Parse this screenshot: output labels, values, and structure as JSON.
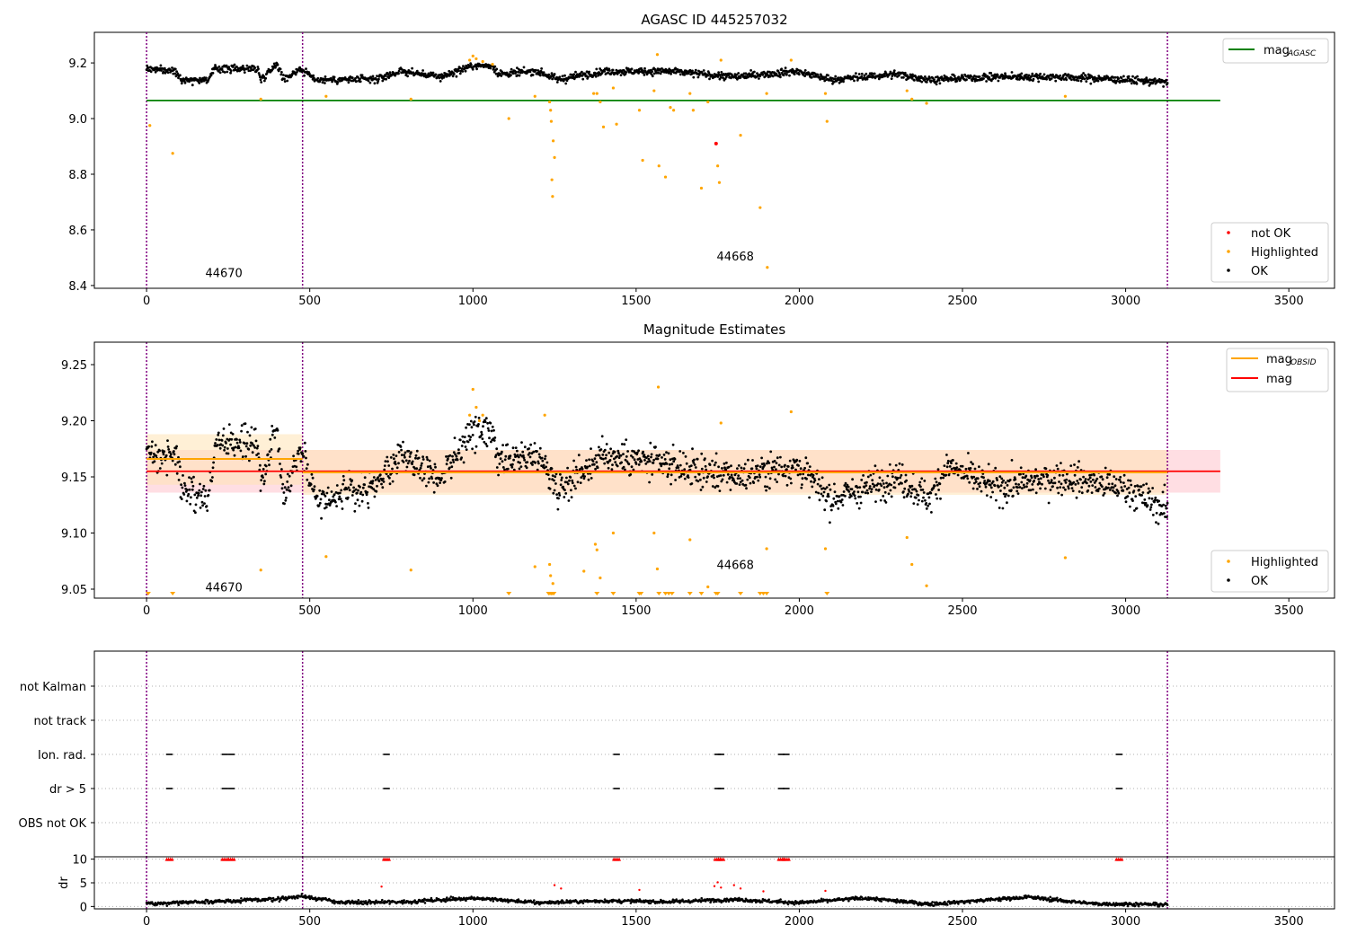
{
  "colors": {
    "ok": "#000000",
    "not_ok": "#ff0000",
    "highlighted": "#ffa500",
    "agasc_line": "#008000",
    "obsid_line": "#ffa500",
    "mag_line": "#ff0000",
    "obs_boundary": "#800080",
    "mag_band": "#ffb6c1",
    "obsid_band": "#ffe4b5"
  },
  "chart_data": [
    {
      "type": "scatter",
      "title": "AGASC ID 445257032",
      "xlim": [
        -160,
        3640
      ],
      "ylim": [
        8.39,
        9.31
      ],
      "xticks": [
        "0",
        "500",
        "1000",
        "1500",
        "2000",
        "2500",
        "3000",
        "3500"
      ],
      "xtick_values": [
        0,
        500,
        1000,
        1500,
        2000,
        2500,
        3000,
        3500
      ],
      "yticks": [
        "8.4",
        "8.6",
        "8.8",
        "9.0",
        "9.2"
      ],
      "ytick_values": [
        8.4,
        8.6,
        8.8,
        9.0,
        9.2
      ],
      "obs_boundaries": [
        0,
        478,
        3128
      ],
      "obsid_labels": [
        {
          "text": "44670",
          "x": 180,
          "y": 8.43
        },
        {
          "text": "44668",
          "x": 1747,
          "y": 8.49
        }
      ],
      "mag_agasc": 9.065,
      "mag_agasc_xrange": [
        0,
        3290
      ],
      "ok_trend": [
        {
          "x": 0,
          "y": 9.18
        },
        {
          "x": 90,
          "y": 9.17
        },
        {
          "x": 110,
          "y": 9.14
        },
        {
          "x": 190,
          "y": 9.14
        },
        {
          "x": 210,
          "y": 9.18
        },
        {
          "x": 340,
          "y": 9.18
        },
        {
          "x": 350,
          "y": 9.14
        },
        {
          "x": 400,
          "y": 9.2
        },
        {
          "x": 420,
          "y": 9.14
        },
        {
          "x": 470,
          "y": 9.18
        },
        {
          "x": 520,
          "y": 9.14
        },
        {
          "x": 700,
          "y": 9.14
        },
        {
          "x": 780,
          "y": 9.17
        },
        {
          "x": 900,
          "y": 9.15
        },
        {
          "x": 1000,
          "y": 9.19
        },
        {
          "x": 1060,
          "y": 9.19
        },
        {
          "x": 1080,
          "y": 9.16
        },
        {
          "x": 1200,
          "y": 9.17
        },
        {
          "x": 1260,
          "y": 9.14
        },
        {
          "x": 1400,
          "y": 9.17
        },
        {
          "x": 1600,
          "y": 9.17
        },
        {
          "x": 1800,
          "y": 9.15
        },
        {
          "x": 1990,
          "y": 9.17
        },
        {
          "x": 2100,
          "y": 9.14
        },
        {
          "x": 2300,
          "y": 9.16
        },
        {
          "x": 2400,
          "y": 9.14
        },
        {
          "x": 2600,
          "y": 9.15
        },
        {
          "x": 2800,
          "y": 9.15
        },
        {
          "x": 3000,
          "y": 9.14
        },
        {
          "x": 3128,
          "y": 9.13
        }
      ],
      "ok_spread": 0.012,
      "ok_x_range": [
        0,
        3128
      ],
      "ok_count": 1800,
      "highlighted_points": [
        {
          "x": 10,
          "y": 8.975
        },
        {
          "x": 80,
          "y": 8.875
        },
        {
          "x": 350,
          "y": 9.07
        },
        {
          "x": 550,
          "y": 9.08
        },
        {
          "x": 810,
          "y": 9.07
        },
        {
          "x": 990,
          "y": 9.21
        },
        {
          "x": 1000,
          "y": 9.225
        },
        {
          "x": 1010,
          "y": 9.215
        },
        {
          "x": 1030,
          "y": 9.205
        },
        {
          "x": 1060,
          "y": 9.195
        },
        {
          "x": 1110,
          "y": 9.0
        },
        {
          "x": 1190,
          "y": 9.08
        },
        {
          "x": 1235,
          "y": 9.06
        },
        {
          "x": 1238,
          "y": 9.03
        },
        {
          "x": 1240,
          "y": 8.99
        },
        {
          "x": 1242,
          "y": 8.78
        },
        {
          "x": 1244,
          "y": 8.72
        },
        {
          "x": 1246,
          "y": 8.92
        },
        {
          "x": 1250,
          "y": 8.86
        },
        {
          "x": 1370,
          "y": 9.09
        },
        {
          "x": 1380,
          "y": 9.09
        },
        {
          "x": 1390,
          "y": 9.06
        },
        {
          "x": 1400,
          "y": 8.97
        },
        {
          "x": 1430,
          "y": 9.11
        },
        {
          "x": 1440,
          "y": 8.98
        },
        {
          "x": 1510,
          "y": 9.03
        },
        {
          "x": 1520,
          "y": 8.85
        },
        {
          "x": 1555,
          "y": 9.1
        },
        {
          "x": 1570,
          "y": 8.83
        },
        {
          "x": 1590,
          "y": 8.79
        },
        {
          "x": 1605,
          "y": 9.04
        },
        {
          "x": 1615,
          "y": 9.03
        },
        {
          "x": 1565,
          "y": 9.23
        },
        {
          "x": 1665,
          "y": 9.09
        },
        {
          "x": 1675,
          "y": 9.03
        },
        {
          "x": 1700,
          "y": 8.75
        },
        {
          "x": 1720,
          "y": 9.06
        },
        {
          "x": 1750,
          "y": 8.83
        },
        {
          "x": 1755,
          "y": 8.77
        },
        {
          "x": 1760,
          "y": 9.21
        },
        {
          "x": 1820,
          "y": 8.94
        },
        {
          "x": 1880,
          "y": 8.68
        },
        {
          "x": 1900,
          "y": 9.09
        },
        {
          "x": 1902,
          "y": 8.465
        },
        {
          "x": 1975,
          "y": 9.21
        },
        {
          "x": 2080,
          "y": 9.09
        },
        {
          "x": 2085,
          "y": 8.99
        },
        {
          "x": 2330,
          "y": 9.1
        },
        {
          "x": 2345,
          "y": 9.07
        },
        {
          "x": 2390,
          "y": 9.055
        },
        {
          "x": 2815,
          "y": 9.08
        }
      ],
      "not_ok_points": [
        {
          "x": 1745,
          "y": 8.91
        }
      ],
      "legend_top": {
        "placement": "top-right",
        "entries": [
          {
            "text": "mag",
            "sub": "AGASC"
          }
        ]
      },
      "legend_bottom": {
        "placement": "bottom-right",
        "entries": [
          {
            "text": "not OK"
          },
          {
            "text": "Highlighted"
          },
          {
            "text": "OK"
          }
        ]
      }
    },
    {
      "type": "scatter",
      "title": "Magnitude Estimates",
      "xlim": [
        -160,
        3640
      ],
      "ylim": [
        9.042,
        9.27
      ],
      "xticks": [
        "0",
        "500",
        "1000",
        "1500",
        "2000",
        "2500",
        "3000",
        "3500"
      ],
      "xtick_values": [
        0,
        500,
        1000,
        1500,
        2000,
        2500,
        3000,
        3500
      ],
      "yticks": [
        "9.05",
        "9.10",
        "9.15",
        "9.20",
        "9.25"
      ],
      "ytick_values": [
        9.05,
        9.1,
        9.15,
        9.2,
        9.25
      ],
      "obs_boundaries": [
        0,
        478,
        3128
      ],
      "obsid_labels": [
        {
          "text": "44670",
          "x": 180,
          "y": 9.045
        },
        {
          "text": "44668",
          "x": 1747,
          "y": 9.065
        }
      ],
      "mag": 9.155,
      "mag_band": [
        9.136,
        9.174
      ],
      "mag_xrange": [
        0,
        3290
      ],
      "mag_obsid": [
        {
          "x0": 0,
          "x1": 478,
          "y": 9.166,
          "band": [
            9.143,
            9.188
          ]
        },
        {
          "x0": 478,
          "x1": 3128,
          "y": 9.154,
          "band": [
            9.134,
            9.174
          ]
        }
      ],
      "ok_trend": [
        {
          "x": 0,
          "y": 9.17
        },
        {
          "x": 90,
          "y": 9.17
        },
        {
          "x": 110,
          "y": 9.14
        },
        {
          "x": 190,
          "y": 9.13
        },
        {
          "x": 210,
          "y": 9.18
        },
        {
          "x": 340,
          "y": 9.18
        },
        {
          "x": 350,
          "y": 9.14
        },
        {
          "x": 400,
          "y": 9.2
        },
        {
          "x": 420,
          "y": 9.13
        },
        {
          "x": 470,
          "y": 9.18
        },
        {
          "x": 520,
          "y": 9.13
        },
        {
          "x": 700,
          "y": 9.14
        },
        {
          "x": 780,
          "y": 9.17
        },
        {
          "x": 900,
          "y": 9.15
        },
        {
          "x": 1000,
          "y": 9.19
        },
        {
          "x": 1060,
          "y": 9.19
        },
        {
          "x": 1080,
          "y": 9.16
        },
        {
          "x": 1200,
          "y": 9.17
        },
        {
          "x": 1260,
          "y": 9.14
        },
        {
          "x": 1400,
          "y": 9.17
        },
        {
          "x": 1600,
          "y": 9.16
        },
        {
          "x": 1800,
          "y": 9.15
        },
        {
          "x": 1990,
          "y": 9.16
        },
        {
          "x": 2100,
          "y": 9.13
        },
        {
          "x": 2300,
          "y": 9.15
        },
        {
          "x": 2400,
          "y": 9.13
        },
        {
          "x": 2450,
          "y": 9.16
        },
        {
          "x": 2600,
          "y": 9.14
        },
        {
          "x": 2800,
          "y": 9.15
        },
        {
          "x": 3000,
          "y": 9.14
        },
        {
          "x": 3128,
          "y": 9.12
        }
      ],
      "ok_spread": 0.013,
      "ok_x_range": [
        0,
        3128
      ],
      "ok_count": 1800,
      "highlighted_points": [
        {
          "x": 350,
          "y": 9.067
        },
        {
          "x": 550,
          "y": 9.079
        },
        {
          "x": 810,
          "y": 9.067
        },
        {
          "x": 990,
          "y": 9.205
        },
        {
          "x": 1000,
          "y": 9.228
        },
        {
          "x": 1010,
          "y": 9.212
        },
        {
          "x": 1020,
          "y": 9.2
        },
        {
          "x": 1030,
          "y": 9.205
        },
        {
          "x": 1190,
          "y": 9.07
        },
        {
          "x": 1220,
          "y": 9.205
        },
        {
          "x": 1235,
          "y": 9.072
        },
        {
          "x": 1238,
          "y": 9.062
        },
        {
          "x": 1245,
          "y": 9.055
        },
        {
          "x": 1340,
          "y": 9.066
        },
        {
          "x": 1375,
          "y": 9.09
        },
        {
          "x": 1380,
          "y": 9.085
        },
        {
          "x": 1390,
          "y": 9.06
        },
        {
          "x": 1430,
          "y": 9.1
        },
        {
          "x": 1555,
          "y": 9.1
        },
        {
          "x": 1565,
          "y": 9.068
        },
        {
          "x": 1568,
          "y": 9.23
        },
        {
          "x": 1665,
          "y": 9.094
        },
        {
          "x": 1720,
          "y": 9.052
        },
        {
          "x": 1760,
          "y": 9.198
        },
        {
          "x": 1900,
          "y": 9.086
        },
        {
          "x": 1975,
          "y": 9.208
        },
        {
          "x": 2080,
          "y": 9.086
        },
        {
          "x": 2330,
          "y": 9.096
        },
        {
          "x": 2345,
          "y": 9.072
        },
        {
          "x": 2390,
          "y": 9.053
        },
        {
          "x": 2815,
          "y": 9.078
        }
      ],
      "clipped_points_x": [
        5,
        80,
        1110,
        1232,
        1236,
        1240,
        1244,
        1248,
        1380,
        1430,
        1510,
        1515,
        1570,
        1590,
        1600,
        1610,
        1665,
        1700,
        1745,
        1750,
        1820,
        1880,
        1890,
        1900,
        2085
      ],
      "legend_top": {
        "placement": "top-right",
        "entries": [
          {
            "text": "mag",
            "sub": "OBSID"
          },
          {
            "text": "mag"
          }
        ]
      },
      "legend_bottom": {
        "placement": "bottom-right",
        "entries": [
          {
            "text": "Highlighted"
          },
          {
            "text": "OK"
          }
        ]
      }
    },
    {
      "type": "scatter",
      "title": "",
      "xlim": [
        -160,
        3640
      ],
      "categories": [
        "not Kalman",
        "not track",
        "Ion. rad.",
        "dr > 5",
        "OBS not OK"
      ],
      "obs_boundaries": [
        0,
        478,
        3128
      ],
      "flag_clusters": {
        "Ion. rad.": [
          70,
          240,
          260,
          735,
          1440,
          1750,
          1760,
          1945,
          1960,
          2980
        ],
        "dr > 5": [
          70,
          240,
          260,
          735,
          1440,
          1750,
          1760,
          1945,
          1960,
          2980
        ]
      }
    },
    {
      "type": "scatter",
      "title": "",
      "ylabel": "dr",
      "xlim": [
        -160,
        3640
      ],
      "ylim": [
        -0.5,
        10.5
      ],
      "xticks": [
        "0",
        "500",
        "1000",
        "1500",
        "2000",
        "2500",
        "3000",
        "3500"
      ],
      "xtick_values": [
        0,
        500,
        1000,
        1500,
        2000,
        2500,
        3000,
        3500
      ],
      "yticks": [
        "0",
        "5",
        "10"
      ],
      "ytick_values": [
        0,
        5,
        10
      ],
      "obs_boundaries": [
        0,
        478,
        3128
      ],
      "dr_trend": [
        {
          "x": 0,
          "y": 0.6
        },
        {
          "x": 200,
          "y": 1.0
        },
        {
          "x": 400,
          "y": 1.6
        },
        {
          "x": 480,
          "y": 2.2
        },
        {
          "x": 600,
          "y": 0.8
        },
        {
          "x": 800,
          "y": 1.0
        },
        {
          "x": 1000,
          "y": 1.8
        },
        {
          "x": 1200,
          "y": 0.8
        },
        {
          "x": 1400,
          "y": 1.2
        },
        {
          "x": 1600,
          "y": 1.0
        },
        {
          "x": 1800,
          "y": 1.5
        },
        {
          "x": 2000,
          "y": 0.8
        },
        {
          "x": 2200,
          "y": 1.8
        },
        {
          "x": 2400,
          "y": 0.5
        },
        {
          "x": 2700,
          "y": 2.0
        },
        {
          "x": 2900,
          "y": 0.6
        },
        {
          "x": 3128,
          "y": 0.4
        }
      ],
      "dr_outliers": [
        {
          "x": 720,
          "y": 4.2
        },
        {
          "x": 1250,
          "y": 4.5
        },
        {
          "x": 1270,
          "y": 3.8
        },
        {
          "x": 1510,
          "y": 3.5
        },
        {
          "x": 1740,
          "y": 4.3
        },
        {
          "x": 1750,
          "y": 5.1
        },
        {
          "x": 1760,
          "y": 4.0
        },
        {
          "x": 1800,
          "y": 4.5
        },
        {
          "x": 1820,
          "y": 3.8
        },
        {
          "x": 1890,
          "y": 3.2
        },
        {
          "x": 2080,
          "y": 3.3
        }
      ],
      "dr_clipped_x": [
        70,
        240,
        260,
        735,
        1440,
        1750,
        1760,
        1945,
        1960,
        2980
      ]
    }
  ]
}
